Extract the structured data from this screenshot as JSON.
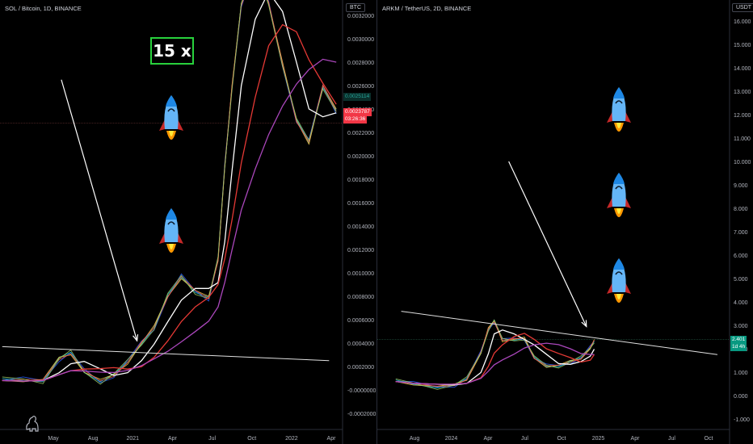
{
  "left": {
    "title": "SOL / Bitcoin, 1D, BINANCE",
    "currency": "BTC",
    "overlay_text": "15 x",
    "last_price": "0.0023787",
    "countdown": "03:26:36",
    "teal_label": "0.0025114"
  },
  "right": {
    "title": "ARKM / TetherUS, 2D, BINANCE",
    "currency": "USDT",
    "last_price": "2.401",
    "countdown": "1d 4h"
  },
  "colors": {
    "background": "#000000",
    "up": "#089981",
    "down": "#f23645",
    "highlight": "#28d13c"
  },
  "chart_data": [
    {
      "type": "line",
      "symbol": "SOL/BTC",
      "title": "SOL / Bitcoin, 1D, BINANCE",
      "y_ticks": [
        "-0.0002000",
        "-0.0000000",
        "0.0002000",
        "0.0004000",
        "0.0006000",
        "0.0008000",
        "0.0010000",
        "0.0012000",
        "0.0014000",
        "0.0016000",
        "0.0018000",
        "0.0020000",
        "0.0022000",
        "0.0024000",
        "0.0026000",
        "0.0028000",
        "0.0030000",
        "0.0032000"
      ],
      "ylim": [
        -0.0002,
        0.0032
      ],
      "x_ticks": [
        "May",
        "Aug",
        "2021",
        "Apr",
        "Jul",
        "Oct",
        "2022",
        "Apr"
      ],
      "x_range": [
        "2020-04-10",
        "2022-05-15"
      ],
      "series": [
        {
          "x": [
            "2020-04-15",
            "2020-06-01",
            "2020-07-15",
            "2020-08-20",
            "2020-09-15",
            "2020-10-15",
            "2020-11-20",
            "2020-12-20",
            "2021-01-20",
            "2021-02-20",
            "2021-03-20",
            "2021-04-20",
            "2021-05-20",
            "2021-06-20",
            "2021-07-20",
            "2021-08-10",
            "2021-08-25",
            "2021-09-10",
            "2021-10-01",
            "2021-11-01",
            "2021-12-01",
            "2022-01-01",
            "2022-02-01",
            "2022-03-01",
            "2022-04-01",
            "2022-05-01"
          ],
          "y": [
            8e-05,
            7e-05,
            9e-05,
            0.00028,
            0.0003,
            0.00015,
            9e-05,
            0.00013,
            0.00022,
            0.0004,
            0.00055,
            0.0008,
            0.00095,
            0.00085,
            0.0008,
            0.0011,
            0.0019,
            0.0026,
            0.0033,
            0.0036,
            0.0033,
            0.0028,
            0.0023,
            0.0021,
            0.0026,
            0.0024
          ]
        }
      ],
      "annotations": {
        "trendline": {
          "from": [
            "2020-04-15",
            0.00037
          ],
          "to": [
            "2022-04-15",
            0.00025
          ]
        },
        "arrow": {
          "from": [
            "2020-08-25",
            0.00265
          ],
          "to": [
            "2021-02-10",
            0.00042
          ]
        },
        "horizontal_level": 0.00228
      }
    },
    {
      "type": "line",
      "symbol": "ARKM/USDT",
      "title": "ARKM / TetherUS, 2D, BINANCE",
      "y_ticks": [
        "-1.000",
        "0.000",
        "1.000",
        "2.000",
        "3.000",
        "4.000",
        "5.000",
        "6.000",
        "7.000",
        "8.000",
        "9.000",
        "10.000",
        "11.000",
        "12.000",
        "13.000",
        "14.000",
        "15.000",
        "16.000"
      ],
      "ylim": [
        -1,
        16.5
      ],
      "x_ticks": [
        "Aug",
        "2024",
        "Apr",
        "Jul",
        "Oct",
        "2025",
        "Apr",
        "Jul",
        "Oct"
      ],
      "x_range": [
        "2023-06-01",
        "2025-11-15"
      ],
      "series": [
        {
          "x": [
            "2023-07-18",
            "2023-09-01",
            "2023-11-01",
            "2023-12-15",
            "2024-01-15",
            "2024-02-20",
            "2024-03-10",
            "2024-03-25",
            "2024-04-15",
            "2024-05-15",
            "2024-06-10",
            "2024-07-05",
            "2024-08-05",
            "2024-09-05",
            "2024-10-05",
            "2024-11-01",
            "2024-11-25",
            "2024-12-05"
          ],
          "y": [
            0.6,
            0.45,
            0.4,
            0.5,
            0.65,
            1.8,
            2.9,
            3.2,
            2.3,
            2.4,
            2.5,
            1.6,
            1.2,
            1.3,
            1.5,
            1.55,
            2.0,
            2.4
          ]
        }
      ],
      "annotations": {
        "trendline": {
          "from": [
            "2023-08-01",
            3.6
          ],
          "to": [
            "2025-10-15",
            1.75
          ]
        },
        "arrow": {
          "from": [
            "2024-05-01",
            10.0
          ],
          "to": [
            "2024-11-15",
            2.95
          ]
        },
        "horizontal_level": 2.4
      }
    }
  ]
}
